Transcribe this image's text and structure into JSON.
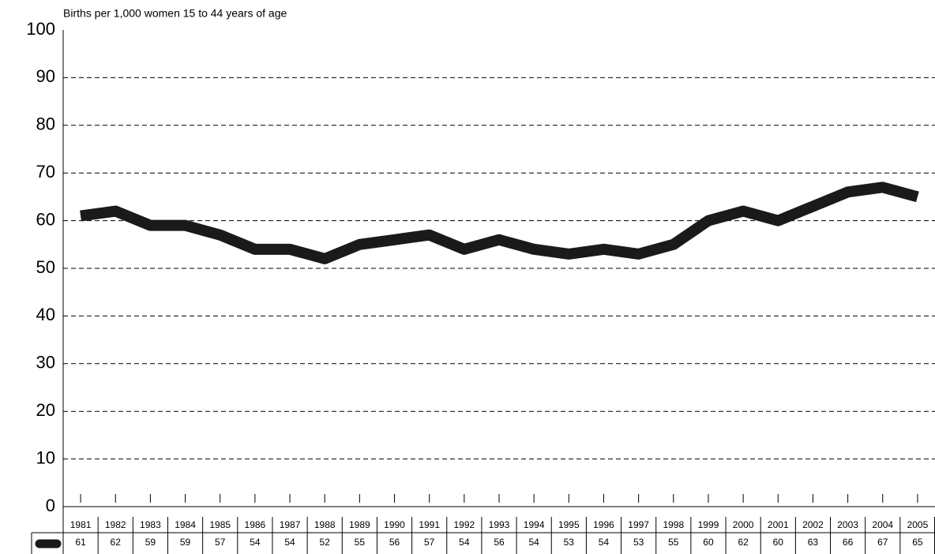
{
  "chart_data": {
    "type": "line",
    "title": "Births per 1,000 women 15 to 44 years of age",
    "categories": [
      "1981",
      "1982",
      "1983",
      "1984",
      "1985",
      "1986",
      "1987",
      "1988",
      "1989",
      "1990",
      "1991",
      "1992",
      "1993",
      "1994",
      "1995",
      "1996",
      "1997",
      "1998",
      "1999",
      "2000",
      "2001",
      "2002",
      "2003",
      "2004",
      "2005"
    ],
    "values": [
      61,
      62,
      59,
      59,
      57,
      54,
      54,
      52,
      55,
      56,
      57,
      54,
      56,
      54,
      53,
      54,
      53,
      55,
      60,
      62,
      60,
      63,
      66,
      67,
      65
    ],
    "color": "#1a1a1a",
    "ylim": [
      0,
      100
    ],
    "yticks": [
      0,
      10,
      20,
      30,
      40,
      50,
      60,
      70,
      80,
      90,
      100
    ],
    "grid": true
  }
}
